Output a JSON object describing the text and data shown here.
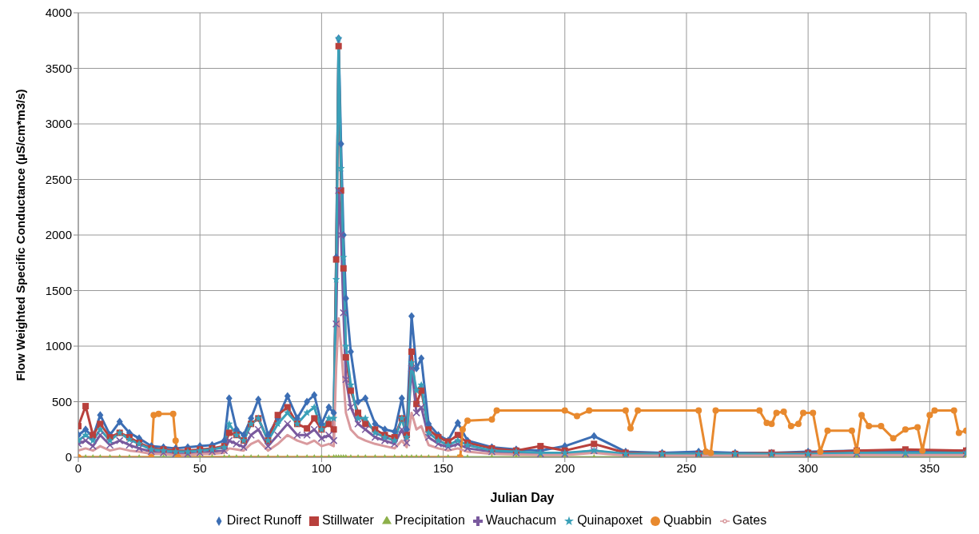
{
  "chart_data": {
    "type": "line",
    "xlabel": "Julian Day",
    "ylabel": "Flow Weighted Specific Conductance  (µS/cm*m3/s)",
    "x": [
      0,
      3,
      6,
      9,
      13,
      17,
      21,
      25,
      30,
      35,
      40,
      45,
      50,
      55,
      60,
      62,
      65,
      68,
      71,
      74,
      78,
      82,
      86,
      90,
      94,
      97,
      100,
      103,
      105,
      106,
      107,
      108,
      109,
      110,
      112,
      115,
      118,
      122,
      126,
      130,
      133,
      135,
      137,
      139,
      141,
      144,
      148,
      152,
      156,
      160,
      170,
      180,
      190,
      200,
      212,
      225,
      240,
      255,
      270,
      285,
      300,
      320,
      340,
      365
    ],
    "series": [
      {
        "name": "Direct Runoff",
        "color": "#3c6eb4",
        "marker": "diamond",
        "values": [
          200,
          250,
          180,
          380,
          200,
          320,
          220,
          170,
          100,
          90,
          80,
          90,
          100,
          110,
          150,
          530,
          250,
          200,
          350,
          520,
          200,
          350,
          550,
          350,
          500,
          560,
          300,
          450,
          400,
          1800,
          3770,
          2820,
          2000,
          1430,
          950,
          500,
          530,
          300,
          250,
          230,
          530,
          250,
          1270,
          800,
          890,
          300,
          200,
          150,
          310,
          150,
          90,
          70,
          60,
          100,
          190,
          50,
          40,
          50,
          40,
          40,
          50,
          60,
          60,
          60
        ]
      },
      {
        "name": "Stillwater",
        "color": "#b8403c",
        "marker": "square",
        "values": [
          280,
          460,
          200,
          300,
          180,
          220,
          180,
          130,
          80,
          70,
          60,
          60,
          70,
          80,
          100,
          220,
          200,
          150,
          300,
          350,
          150,
          380,
          450,
          300,
          260,
          350,
          250,
          300,
          250,
          1780,
          3700,
          2400,
          1700,
          900,
          600,
          400,
          300,
          250,
          200,
          180,
          350,
          200,
          950,
          480,
          600,
          250,
          180,
          140,
          200,
          130,
          80,
          60,
          100,
          60,
          120,
          40,
          30,
          30,
          30,
          40,
          40,
          60,
          70,
          60
        ]
      },
      {
        "name": "Precipitation",
        "color": "#8db04a",
        "marker": "triangle",
        "values": [
          0,
          0,
          0,
          0,
          0,
          0,
          0,
          0,
          0,
          0,
          0,
          0,
          0,
          0,
          0,
          0,
          0,
          0,
          0,
          0,
          0,
          0,
          0,
          0,
          0,
          0,
          0,
          0,
          0,
          0,
          0,
          0,
          0,
          0,
          0,
          0,
          0,
          0,
          0,
          0,
          0,
          0,
          0,
          0,
          0,
          0,
          0,
          0,
          0,
          0,
          0,
          0,
          0,
          0,
          0,
          0,
          0,
          0,
          0,
          0,
          0,
          0,
          0,
          0
        ]
      },
      {
        "name": "Wauchacum",
        "color": "#7a5a9e",
        "marker": "cross",
        "values": [
          120,
          150,
          100,
          200,
          110,
          150,
          110,
          80,
          50,
          40,
          30,
          30,
          40,
          50,
          60,
          150,
          120,
          90,
          200,
          250,
          100,
          200,
          300,
          200,
          200,
          250,
          170,
          200,
          150,
          1200,
          2400,
          2000,
          1300,
          700,
          450,
          300,
          250,
          180,
          150,
          120,
          250,
          130,
          800,
          400,
          450,
          180,
          120,
          90,
          120,
          80,
          50,
          40,
          30,
          30,
          60,
          20,
          20,
          20,
          20,
          20,
          20,
          30,
          30,
          30
        ]
      },
      {
        "name": "Quinapoxet",
        "color": "#3aa0b8",
        "marker": "star",
        "values": [
          150,
          200,
          150,
          250,
          150,
          220,
          160,
          120,
          70,
          60,
          50,
          50,
          60,
          70,
          90,
          300,
          200,
          150,
          300,
          350,
          150,
          300,
          400,
          300,
          400,
          450,
          250,
          350,
          350,
          1600,
          3770,
          2600,
          1800,
          1000,
          650,
          350,
          350,
          220,
          180,
          150,
          350,
          180,
          850,
          600,
          650,
          220,
          150,
          110,
          150,
          110,
          60,
          50,
          40,
          40,
          60,
          30,
          30,
          30,
          30,
          30,
          30,
          40,
          40,
          40
        ]
      },
      {
        "name": "Quabbin",
        "color": "#e8892e",
        "marker": "circle",
        "x": [
          0,
          30,
          31,
          33,
          39,
          40,
          41,
          157,
          158,
          160,
          170,
          172,
          200,
          205,
          210,
          225,
          227,
          230,
          255,
          258,
          260,
          262,
          280,
          283,
          285,
          287,
          290,
          293,
          296,
          298,
          302,
          305,
          308,
          318,
          320,
          322,
          325,
          330,
          335,
          340,
          345,
          347,
          350,
          352,
          360,
          362,
          365
        ],
        "values": [
          0,
          0,
          380,
          390,
          390,
          150,
          0,
          0,
          250,
          330,
          340,
          420,
          420,
          370,
          420,
          420,
          260,
          420,
          420,
          50,
          40,
          420,
          420,
          310,
          300,
          400,
          410,
          280,
          300,
          400,
          400,
          50,
          240,
          240,
          60,
          380,
          280,
          280,
          170,
          250,
          270,
          60,
          380,
          420,
          420,
          220,
          240
        ]
      },
      {
        "name": "Gates",
        "color": "#d99a9e",
        "marker": "none",
        "values": [
          60,
          80,
          60,
          100,
          60,
          80,
          60,
          50,
          30,
          30,
          20,
          20,
          30,
          30,
          40,
          80,
          70,
          60,
          120,
          150,
          60,
          120,
          200,
          150,
          120,
          150,
          100,
          120,
          100,
          800,
          1250,
          1000,
          700,
          400,
          250,
          180,
          150,
          120,
          100,
          80,
          150,
          90,
          400,
          250,
          280,
          110,
          80,
          60,
          80,
          50,
          30,
          25,
          20,
          20,
          40,
          15,
          15,
          15,
          15,
          15,
          15,
          20,
          20,
          20
        ]
      }
    ],
    "xlim": [
      0,
      365
    ],
    "xticks": [
      0,
      50,
      100,
      150,
      200,
      250,
      300,
      350
    ],
    "ylim": [
      0,
      4000
    ],
    "yticks": [
      0,
      500,
      1000,
      1500,
      2000,
      2500,
      3000,
      3500,
      4000
    ],
    "grid": true,
    "legend": "bottom",
    "line_style": "solid"
  }
}
